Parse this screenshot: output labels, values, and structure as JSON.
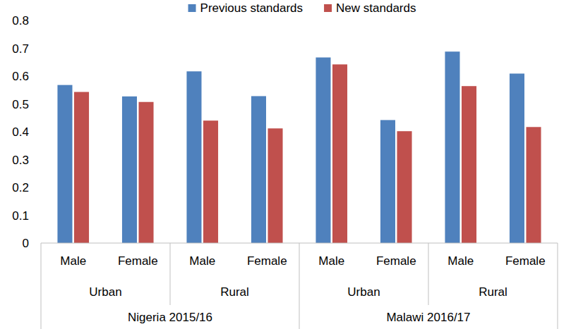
{
  "chart_data": {
    "type": "bar",
    "categories": [
      "Male",
      "Female",
      "Male",
      "Female",
      "Male",
      "Female",
      "Male",
      "Female"
    ],
    "category_groups": [
      [
        "Urban",
        "Rural",
        "Urban",
        "Rural"
      ],
      [
        "Nigeria 2015/16",
        "Malawi 2016/17"
      ]
    ],
    "series": [
      {
        "name": "Previous standards",
        "color": "#4f81bd",
        "values": [
          0.568,
          0.527,
          0.617,
          0.528,
          0.667,
          0.442,
          0.688,
          0.609
        ]
      },
      {
        "name": "New standards",
        "color": "#c0504d",
        "values": [
          0.543,
          0.507,
          0.44,
          0.412,
          0.642,
          0.402,
          0.564,
          0.417
        ]
      }
    ],
    "ylim": [
      0,
      0.8
    ],
    "yticks": [
      0,
      0.1,
      0.2,
      0.3,
      0.4,
      0.5,
      0.6,
      0.7,
      0.8
    ],
    "grid": false,
    "legend": "top"
  }
}
